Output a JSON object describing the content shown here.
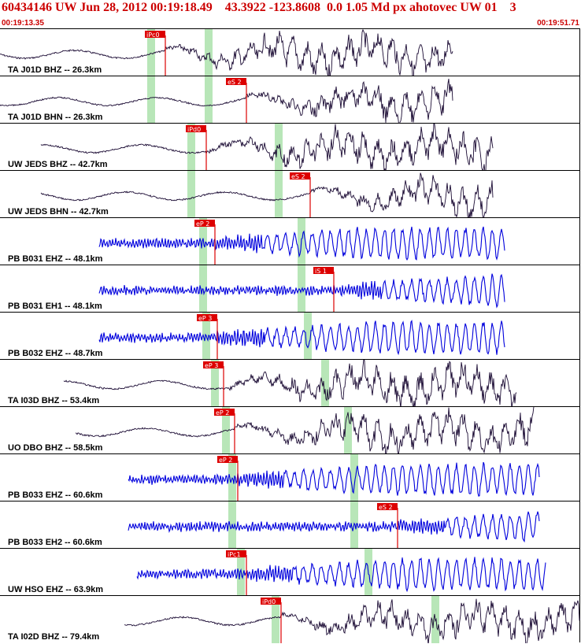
{
  "header": {
    "title": "60434146 UW Jun 28, 2012 00:19:18.49    43.3922 -123.8608  0.0 1.05 Md px ahotovec UW 01    3",
    "time_start": "00:19:13.35",
    "time_end": "00:19:51.71"
  },
  "colors": {
    "title": "#cc0000",
    "broadband_trace": "#1a0a33",
    "shortperiod_trace": "#0000dd",
    "pick": "#dd0000",
    "window": "#b8e6b8"
  },
  "traces": [
    {
      "label": "TA J01D BHZ -- 26.3km",
      "color": "broadband",
      "pick": "iPc0",
      "pick_t": 0.285
    },
    {
      "label": "TA J01D BHN -- 26.3km",
      "color": "broadband",
      "pick": "eS 2",
      "pick_t": 0.425
    },
    {
      "label": "UW JEDS BHZ -- 42.7km",
      "color": "broadband",
      "pick": "iPd0",
      "pick_t": 0.355
    },
    {
      "label": "UW JEDS BHN -- 42.7km",
      "color": "broadband",
      "pick": "eS 2",
      "pick_t": 0.535
    },
    {
      "label": "PB B031 EHZ -- 48.1km",
      "color": "shortperiod",
      "pick": "eP 2",
      "pick_t": 0.37
    },
    {
      "label": "PB B031 EH1 -- 48.1km",
      "color": "shortperiod",
      "pick": "iS 1",
      "pick_t": 0.575
    },
    {
      "label": "PB B032 EHZ -- 48.7km",
      "color": "shortperiod",
      "pick": "eP 3",
      "pick_t": 0.375
    },
    {
      "label": "TA I03D BHZ -- 53.4km",
      "color": "broadband",
      "pick": "eP 3",
      "pick_t": 0.385
    },
    {
      "label": "UO DBO BHZ -- 58.5km",
      "color": "broadband",
      "pick": "eP 2",
      "pick_t": 0.405
    },
    {
      "label": "PB B033 EHZ -- 60.6km",
      "color": "shortperiod",
      "pick": "eP 2",
      "pick_t": 0.41
    },
    {
      "label": "PB B033 EH2 -- 60.6km",
      "color": "shortperiod",
      "pick": "eS 2",
      "pick_t": 0.685
    },
    {
      "label": "UW HSO EHZ -- 63.9km",
      "color": "shortperiod",
      "pick": "iPc1",
      "pick_t": 0.425
    },
    {
      "label": "TA I02D BHZ -- 79.4km",
      "color": "broadband",
      "pick": "iPd0",
      "pick_t": 0.485
    }
  ]
}
